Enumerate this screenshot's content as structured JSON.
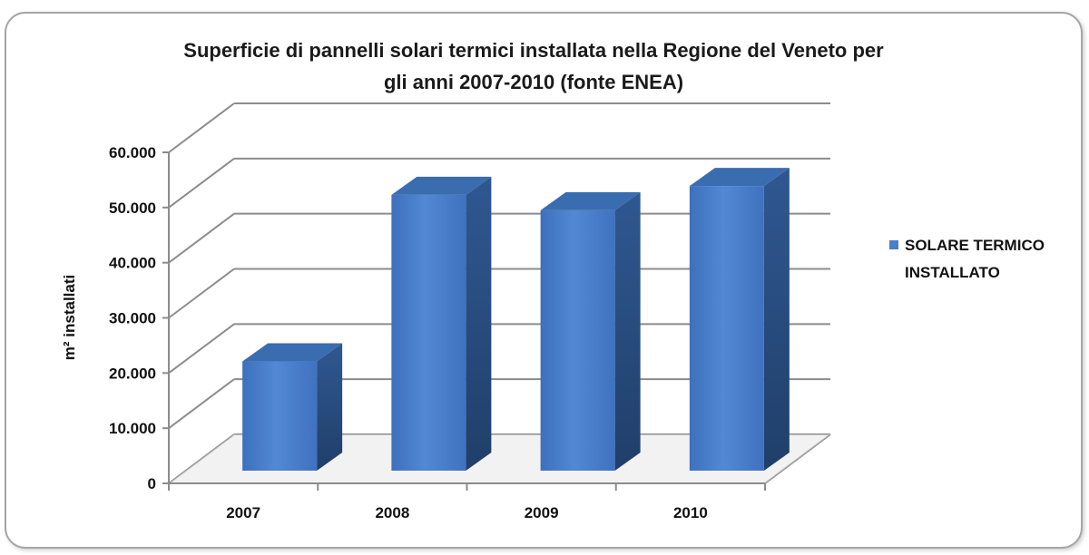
{
  "chart_data": {
    "type": "bar",
    "title_lines": [
      "Superficie di pannelli solari termici installata  nella Regione del Veneto per",
      "gli anni 2007-2010  (fonte ENEA)"
    ],
    "ylabel": "m² installati",
    "categories": [
      "2007",
      "2008",
      "2009",
      "2010"
    ],
    "series": [
      {
        "name": "SOLARE TERMICO INSTALLATO",
        "values": [
          19800,
          50000,
          47200,
          51600
        ]
      }
    ],
    "legend_lines": [
      "SOLARE TERMICO",
      "INSTALLATO"
    ],
    "yticks": [
      "0",
      "10.000",
      "20.000",
      "30.000",
      "40.000",
      "50.000",
      "60.000"
    ],
    "ylim": [
      0,
      60000
    ],
    "grid": true,
    "legend_position": "right",
    "colors": {
      "bar_front": "#4a7fcb",
      "bar_side": "#2a4d80",
      "bar_top": "#3a6cb0",
      "grid": "#8c8c8c",
      "frame": "#a6a6a6"
    }
  }
}
